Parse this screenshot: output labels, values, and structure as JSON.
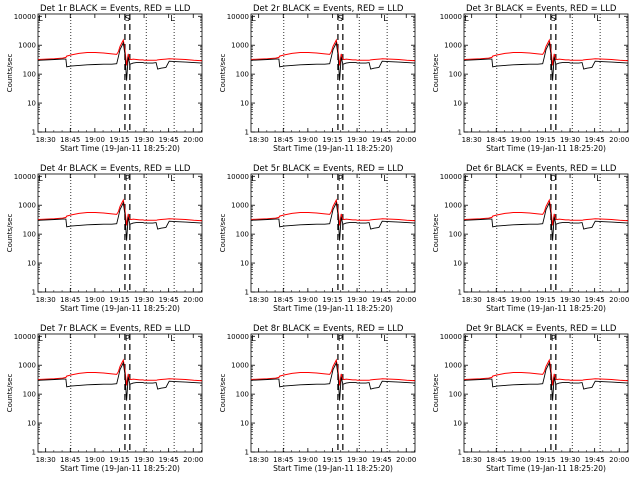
{
  "chart_data": [
    {
      "type": "line",
      "title": "Det 1r BLACK = Events, RED = LLD",
      "ylabel": "Counts/sec",
      "xlabel": "Start Time (19-Jan-11 18:25:20)",
      "xticks": [
        "18:30",
        "18:45",
        "19:00",
        "19:15",
        "19:30",
        "19:45",
        "20:00"
      ],
      "yticks": [
        "1",
        "10",
        "100",
        "1000",
        "10000"
      ],
      "ylim": [
        1,
        12000
      ],
      "xlim_min": [
        0,
        100
      ],
      "markers": [
        "S",
        "L"
      ],
      "series": [
        {
          "name": "Events",
          "color": "#000000"
        },
        {
          "name": "LLD",
          "color": "#ff0000"
        }
      ]
    },
    {
      "type": "line",
      "title": "Det 2r BLACK = Events, RED = LLD",
      "ylabel": "Counts/sec",
      "xlabel": "Start Time (19-Jan-11 18:25:20)",
      "xticks": [
        "18:30",
        "18:45",
        "19:00",
        "19:15",
        "19:30",
        "19:45",
        "20:00"
      ],
      "yticks": [
        "1",
        "10",
        "100",
        "1000",
        "10000"
      ],
      "ylim": [
        1,
        12000
      ],
      "xlim_min": [
        0,
        100
      ],
      "markers": [
        "S",
        "L"
      ],
      "series": [
        {
          "name": "Events",
          "color": "#000000"
        },
        {
          "name": "LLD",
          "color": "#ff0000"
        }
      ]
    },
    {
      "type": "line",
      "title": "Det 3r BLACK = Events, RED = LLD",
      "ylabel": "Counts/sec",
      "xlabel": "Start Time (19-Jan-11 18:25:20)",
      "xticks": [
        "18:30",
        "18:45",
        "19:00",
        "19:15",
        "19:30",
        "19:45",
        "20:00"
      ],
      "yticks": [
        "1",
        "10",
        "100",
        "1000",
        "10000"
      ],
      "ylim": [
        1,
        12000
      ],
      "xlim_min": [
        0,
        100
      ],
      "markers": [
        "S",
        "L"
      ],
      "series": [
        {
          "name": "Events",
          "color": "#000000"
        },
        {
          "name": "LLD",
          "color": "#ff0000"
        }
      ]
    },
    {
      "type": "line",
      "title": "Det 4r BLACK = Events, RED = LLD",
      "ylabel": "Counts/sec",
      "xlabel": "Start Time (19-Jan-11 18:25:20)",
      "xticks": [
        "18:30",
        "18:45",
        "19:00",
        "19:15",
        "19:30",
        "19:45",
        "20:00"
      ],
      "yticks": [
        "1",
        "10",
        "100",
        "1000",
        "10000"
      ],
      "ylim": [
        1,
        12000
      ],
      "xlim_min": [
        0,
        100
      ],
      "markers": [
        "P",
        "L"
      ],
      "series": [
        {
          "name": "Events",
          "color": "#000000"
        },
        {
          "name": "LLD",
          "color": "#ff0000"
        }
      ]
    },
    {
      "type": "line",
      "title": "Det 5r BLACK = Events, RED = LLD",
      "ylabel": "Counts/sec",
      "xlabel": "Start Time (19-Jan-11 18:25:20)",
      "xticks": [
        "18:30",
        "18:45",
        "19:00",
        "19:15",
        "19:30",
        "19:45",
        "20:00"
      ],
      "yticks": [
        "1",
        "10",
        "100",
        "1000",
        "10000"
      ],
      "ylim": [
        1,
        12000
      ],
      "xlim_min": [
        0,
        100
      ],
      "markers": [
        "P",
        "L"
      ],
      "series": [
        {
          "name": "Events",
          "color": "#000000"
        },
        {
          "name": "LLD",
          "color": "#ff0000"
        }
      ]
    },
    {
      "type": "line",
      "title": "Det 6r BLACK = Events, RED = LLD",
      "ylabel": "Counts/sec",
      "xlabel": "Start Time (19-Jan-11 18:25:20)",
      "xticks": [
        "18:30",
        "18:45",
        "19:00",
        "19:15",
        "19:30",
        "19:45",
        "20:00"
      ],
      "yticks": [
        "1",
        "10",
        "100",
        "1000",
        "10000"
      ],
      "ylim": [
        1,
        12000
      ],
      "xlim_min": [
        0,
        100
      ],
      "markers": [
        "D",
        "L"
      ],
      "series": [
        {
          "name": "Events",
          "color": "#000000"
        },
        {
          "name": "LLD",
          "color": "#ff0000"
        }
      ]
    },
    {
      "type": "line",
      "title": "Det 7r BLACK = Events, RED = LLD",
      "ylabel": "Counts/sec",
      "xlabel": "Start Time (19-Jan-11 18:25:20)",
      "xticks": [
        "18:30",
        "18:45",
        "19:00",
        "19:15",
        "19:30",
        "19:45",
        "20:00"
      ],
      "yticks": [
        "1",
        "10",
        "100",
        "1000",
        "10000"
      ],
      "ylim": [
        1,
        12000
      ],
      "xlim_min": [
        0,
        100
      ],
      "markers": [
        "P",
        "L"
      ],
      "series": [
        {
          "name": "Events",
          "color": "#000000"
        },
        {
          "name": "LLD",
          "color": "#ff0000"
        }
      ]
    },
    {
      "type": "line",
      "title": "Det 8r BLACK = Events, RED = LLD",
      "ylabel": "Counts/sec",
      "xlabel": "Start Time (19-Jan-11 18:25:20)",
      "xticks": [
        "18:30",
        "18:45",
        "19:00",
        "19:15",
        "19:30",
        "19:45",
        "20:00"
      ],
      "yticks": [
        "1",
        "10",
        "100",
        "1000",
        "10000"
      ],
      "ylim": [
        1,
        12000
      ],
      "xlim_min": [
        0,
        100
      ],
      "markers": [
        "P",
        "L"
      ],
      "series": [
        {
          "name": "Events",
          "color": "#000000"
        },
        {
          "name": "LLD",
          "color": "#ff0000"
        }
      ]
    },
    {
      "type": "line",
      "title": "Det 9r BLACK = Events, RED = LLD",
      "ylabel": "Counts/sec",
      "xlabel": "Start Time (19-Jan-11 18:25:20)",
      "xticks": [
        "18:30",
        "18:45",
        "19:00",
        "19:15",
        "19:30",
        "19:45",
        "20:00"
      ],
      "yticks": [
        "1",
        "10",
        "100",
        "1000",
        "10000"
      ],
      "ylim": [
        1,
        12000
      ],
      "xlim_min": [
        0,
        100
      ],
      "markers": [
        "P",
        "L"
      ],
      "series": [
        {
          "name": "Events",
          "color": "#000000"
        },
        {
          "name": "LLD",
          "color": "#ff0000"
        }
      ]
    }
  ],
  "shared": {
    "x_minutes": [
      0,
      5,
      10,
      15,
      17,
      17.5,
      20,
      25,
      30,
      35,
      40,
      45,
      48,
      49,
      50,
      52,
      53,
      54,
      55,
      56,
      57,
      58,
      60,
      62,
      64,
      65,
      70,
      72,
      73,
      75,
      78,
      80,
      85,
      90,
      95,
      100
    ],
    "events": [
      300,
      310,
      320,
      330,
      330,
      180,
      190,
      200,
      210,
      215,
      220,
      220,
      230,
      400,
      700,
      1200,
      500,
      60,
      400,
      220,
      230,
      240,
      250,
      250,
      250,
      240,
      240,
      250,
      150,
      160,
      170,
      280,
      270,
      260,
      250,
      240
    ],
    "lld": [
      320,
      330,
      340,
      360,
      380,
      420,
      460,
      520,
      560,
      560,
      540,
      500,
      480,
      600,
      900,
      1500,
      700,
      200,
      500,
      330,
      320,
      330,
      320,
      310,
      310,
      300,
      300,
      300,
      310,
      320,
      330,
      340,
      330,
      320,
      300,
      290
    ],
    "dotted_minutes": [
      20,
      66,
      83
    ],
    "dashed_minutes": [
      53,
      56
    ],
    "marker_minutes": [
      0,
      56,
      83
    ]
  }
}
